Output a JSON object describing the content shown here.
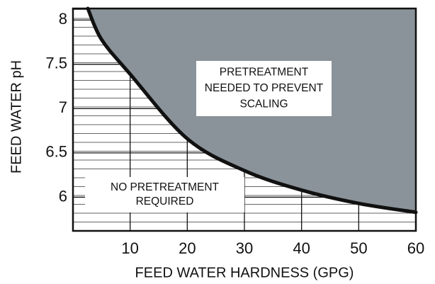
{
  "chart_data": {
    "type": "area",
    "xlabel": "FEED WATER HARDNESS (GPG)",
    "ylabel": "FEED WATER pH",
    "x": [
      2.6,
      5,
      10,
      20,
      30,
      40,
      50,
      60
    ],
    "values": [
      8.13,
      7.78,
      7.39,
      6.66,
      6.3,
      6.08,
      5.93,
      5.83
    ],
    "color": "#8a9399",
    "line_color": "#111111",
    "xlim": [
      0,
      60
    ],
    "ylim": [
      5.62,
      8.13
    ],
    "xticks": [
      10,
      20,
      30,
      40,
      50,
      60
    ],
    "yticks": [
      6,
      6.5,
      7,
      7.5,
      8
    ],
    "grid": true,
    "annotations": [
      {
        "lines": [
          "PRETREATMENT",
          "NEEDED TO PREVENT",
          "SCALING"
        ]
      },
      {
        "lines": [
          "NO PRETREATMENT",
          "REQUIRED"
        ]
      }
    ]
  }
}
